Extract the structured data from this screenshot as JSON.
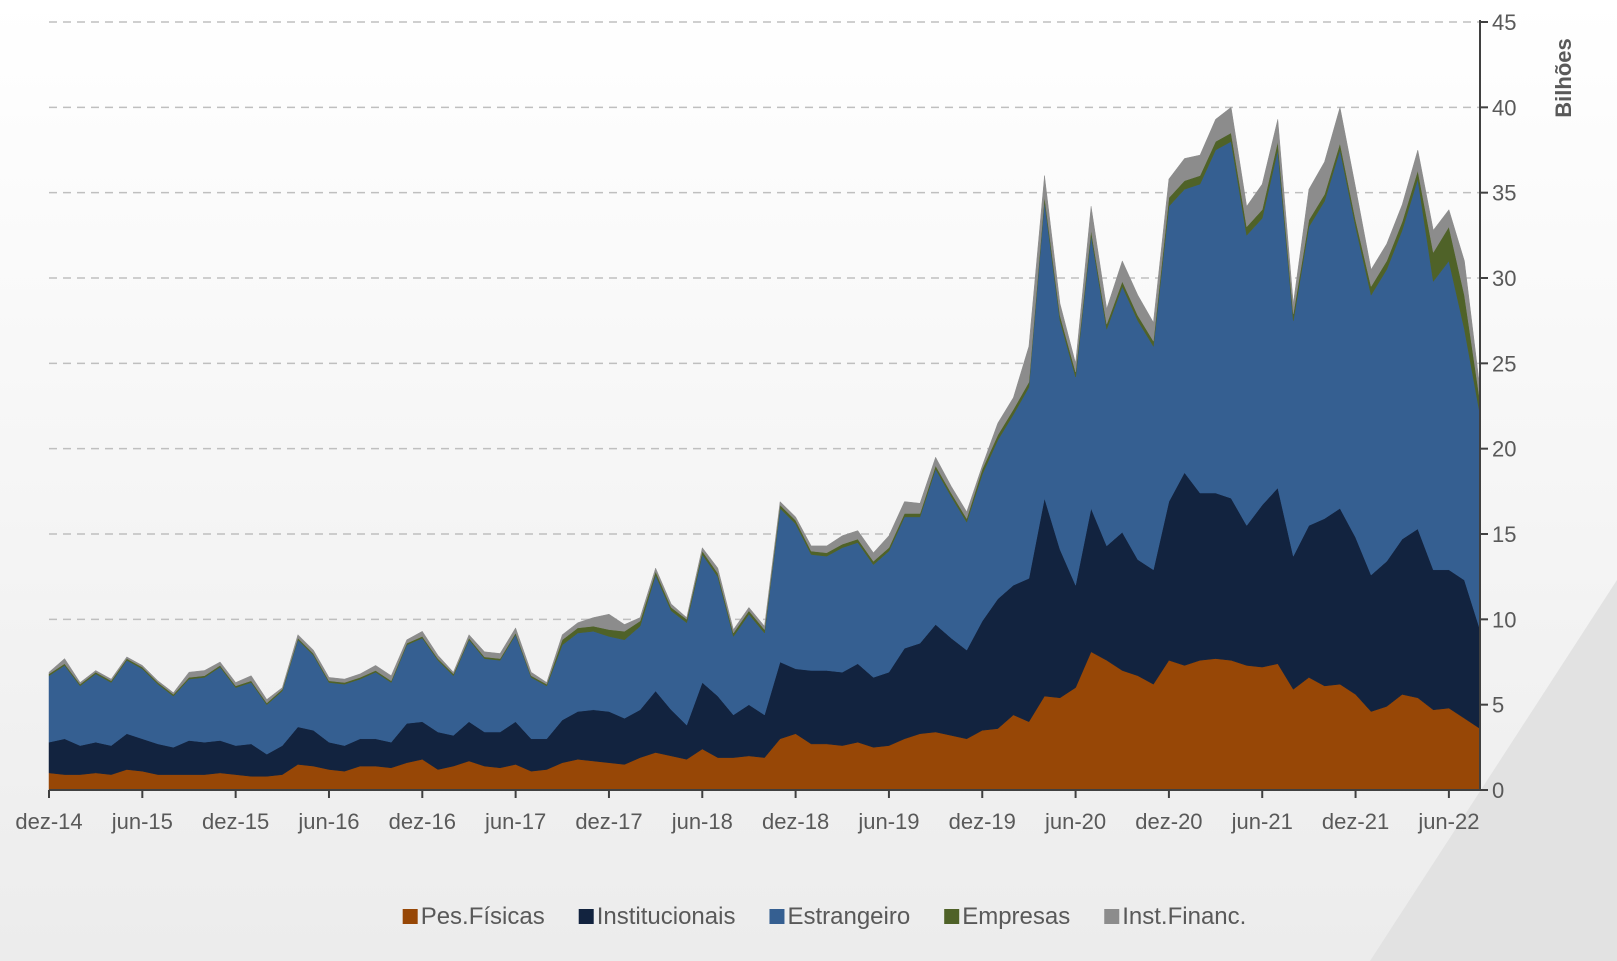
{
  "chart_data": {
    "type": "stacked_area",
    "y_axis_label": "Bilhões",
    "categories": [
      "dez-14",
      null,
      null,
      null,
      null,
      null,
      "jun-15",
      null,
      null,
      null,
      null,
      null,
      "dez-15",
      null,
      null,
      null,
      null,
      null,
      "jun-16",
      null,
      null,
      null,
      null,
      null,
      "dez-16",
      null,
      null,
      null,
      null,
      null,
      "jun-17",
      null,
      null,
      null,
      null,
      null,
      "dez-17",
      null,
      null,
      null,
      null,
      null,
      "jun-18",
      null,
      null,
      null,
      null,
      null,
      "dez-18",
      null,
      null,
      null,
      null,
      null,
      "jun-19",
      null,
      null,
      null,
      null,
      null,
      "dez-19",
      null,
      null,
      null,
      null,
      null,
      "jun-20",
      null,
      null,
      null,
      null,
      null,
      "dez-20",
      null,
      null,
      null,
      null,
      null,
      "jun-21",
      null,
      null,
      null,
      null,
      null,
      "dez-21",
      null,
      null,
      null,
      null,
      null,
      "jun-22",
      null,
      null
    ],
    "series": [
      {
        "name": "Pes.Físicas",
        "color": "#974706",
        "values": [
          1.0,
          0.9,
          0.9,
          1.0,
          0.9,
          1.2,
          1.1,
          0.9,
          0.9,
          0.9,
          0.9,
          1.0,
          0.9,
          0.8,
          0.8,
          0.9,
          1.5,
          1.4,
          1.2,
          1.1,
          1.4,
          1.4,
          1.3,
          1.6,
          1.8,
          1.2,
          1.4,
          1.7,
          1.4,
          1.3,
          1.5,
          1.1,
          1.2,
          1.6,
          1.8,
          1.7,
          1.6,
          1.5,
          1.9,
          2.2,
          2.0,
          1.8,
          2.4,
          1.9,
          1.9,
          2.0,
          1.9,
          3.0,
          3.3,
          2.7,
          2.7,
          2.6,
          2.8,
          2.5,
          2.6,
          3.0,
          3.3,
          3.4,
          3.2,
          3.0,
          3.5,
          3.6,
          4.4,
          4.0,
          5.5,
          5.4,
          6.0,
          8.1,
          7.6,
          7.0,
          6.7,
          6.2,
          7.6,
          7.3,
          7.6,
          7.7,
          7.6,
          7.3,
          7.2,
          7.4,
          5.9,
          6.6,
          6.1,
          6.2,
          5.6,
          4.6,
          4.9,
          5.6,
          5.4,
          4.7,
          4.8,
          4.2,
          3.6
        ]
      },
      {
        "name": "Institucionais",
        "color": "#12233f",
        "values": [
          1.8,
          2.1,
          1.7,
          1.8,
          1.7,
          2.1,
          1.9,
          1.8,
          1.6,
          2.0,
          1.9,
          1.9,
          1.7,
          1.9,
          1.3,
          1.7,
          2.2,
          2.1,
          1.6,
          1.5,
          1.6,
          1.6,
          1.5,
          2.3,
          2.2,
          2.2,
          1.8,
          2.3,
          2.0,
          2.1,
          2.5,
          1.9,
          1.8,
          2.5,
          2.8,
          3.0,
          3.0,
          2.7,
          2.8,
          3.6,
          2.7,
          2.0,
          3.9,
          3.6,
          2.5,
          3.0,
          2.5,
          4.5,
          3.8,
          4.3,
          4.3,
          4.3,
          4.6,
          4.1,
          4.3,
          5.3,
          5.3,
          6.3,
          5.7,
          5.2,
          6.4,
          7.6,
          7.6,
          8.4,
          11.6,
          8.7,
          6.0,
          8.4,
          6.7,
          8.1,
          6.8,
          6.7,
          9.3,
          11.3,
          9.8,
          9.7,
          9.5,
          8.2,
          9.5,
          10.3,
          7.8,
          8.9,
          9.8,
          10.3,
          9.2,
          8.0,
          8.5,
          9.1,
          9.9,
          8.2,
          8.1,
          8.1,
          5.8
        ]
      },
      {
        "name": "Estrangeiro",
        "color": "#355f91",
        "values": [
          3.9,
          4.3,
          3.5,
          4.0,
          3.7,
          4.3,
          4.1,
          3.5,
          3.0,
          3.6,
          3.8,
          4.3,
          3.4,
          3.6,
          2.9,
          3.2,
          5.1,
          4.4,
          3.5,
          3.6,
          3.5,
          3.9,
          3.5,
          4.6,
          4.9,
          4.2,
          3.5,
          4.8,
          4.3,
          4.2,
          5.1,
          3.6,
          3.1,
          4.4,
          4.6,
          4.6,
          4.4,
          4.6,
          4.9,
          6.8,
          5.8,
          6.0,
          7.5,
          7.0,
          4.6,
          5.3,
          4.8,
          9.0,
          8.5,
          6.8,
          6.7,
          7.3,
          7.1,
          6.6,
          7.1,
          7.7,
          7.4,
          9.1,
          8.3,
          7.5,
          8.6,
          9.3,
          10.0,
          11.2,
          17.4,
          13.4,
          12.2,
          16.0,
          12.7,
          14.4,
          14.0,
          13.1,
          17.3,
          16.6,
          18.1,
          20.1,
          20.9,
          17.0,
          16.8,
          19.8,
          13.8,
          17.5,
          18.6,
          21.0,
          18.2,
          16.4,
          17.1,
          18.1,
          20.5,
          16.9,
          18.1,
          14.7,
          12.6
        ]
      },
      {
        "name": "Empresas",
        "color": "#4f6228",
        "values": [
          0.1,
          0.1,
          0.1,
          0.1,
          0.1,
          0.1,
          0.1,
          0.1,
          0.1,
          0.1,
          0.1,
          0.1,
          0.1,
          0.1,
          0.1,
          0.1,
          0.1,
          0.1,
          0.1,
          0.1,
          0.1,
          0.1,
          0.1,
          0.1,
          0.1,
          0.1,
          0.1,
          0.1,
          0.1,
          0.1,
          0.1,
          0.1,
          0.1,
          0.3,
          0.3,
          0.3,
          0.4,
          0.5,
          0.3,
          0.2,
          0.2,
          0.2,
          0.2,
          0.2,
          0.2,
          0.2,
          0.2,
          0.2,
          0.2,
          0.2,
          0.2,
          0.2,
          0.2,
          0.2,
          0.2,
          0.2,
          0.2,
          0.2,
          0.2,
          0.2,
          0.3,
          0.3,
          0.3,
          0.3,
          0.3,
          0.3,
          0.3,
          0.3,
          0.3,
          0.3,
          0.3,
          0.3,
          0.5,
          0.5,
          0.5,
          0.5,
          0.5,
          0.5,
          0.5,
          0.5,
          0.4,
          0.4,
          0.4,
          0.4,
          0.4,
          0.5,
          0.5,
          0.5,
          0.5,
          1.7,
          2.0,
          2.0,
          0.8
        ]
      },
      {
        "name": "Inst.Financ.",
        "color": "#8c8c8c",
        "values": [
          0.1,
          0.3,
          0.1,
          0.1,
          0.1,
          0.1,
          0.1,
          0.1,
          0.1,
          0.3,
          0.3,
          0.2,
          0.2,
          0.3,
          0.2,
          0.1,
          0.2,
          0.2,
          0.2,
          0.2,
          0.2,
          0.3,
          0.3,
          0.2,
          0.3,
          0.2,
          0.1,
          0.2,
          0.3,
          0.3,
          0.3,
          0.2,
          0.1,
          0.3,
          0.3,
          0.5,
          0.9,
          0.4,
          0.2,
          0.2,
          0.2,
          0.1,
          0.2,
          0.3,
          0.2,
          0.2,
          0.2,
          0.2,
          0.2,
          0.3,
          0.4,
          0.5,
          0.5,
          0.5,
          0.7,
          0.7,
          0.6,
          0.5,
          0.4,
          0.4,
          0.2,
          0.7,
          0.7,
          2.1,
          1.2,
          0.7,
          0.5,
          1.4,
          0.9,
          1.2,
          1.2,
          1.1,
          1.1,
          1.3,
          1.2,
          1.3,
          1.5,
          1.2,
          1.5,
          1.3,
          0.6,
          1.8,
          1.9,
          2.1,
          1.9,
          1.0,
          1.0,
          1.0,
          1.2,
          1.3,
          1.0,
          2.0,
          0.7
        ]
      }
    ],
    "ylim": [
      0,
      45
    ],
    "yticks": [
      0,
      5,
      10,
      15,
      20,
      25,
      30,
      35,
      40,
      45
    ],
    "y_axis_side": "right",
    "grid": true,
    "legend": "bottom"
  }
}
